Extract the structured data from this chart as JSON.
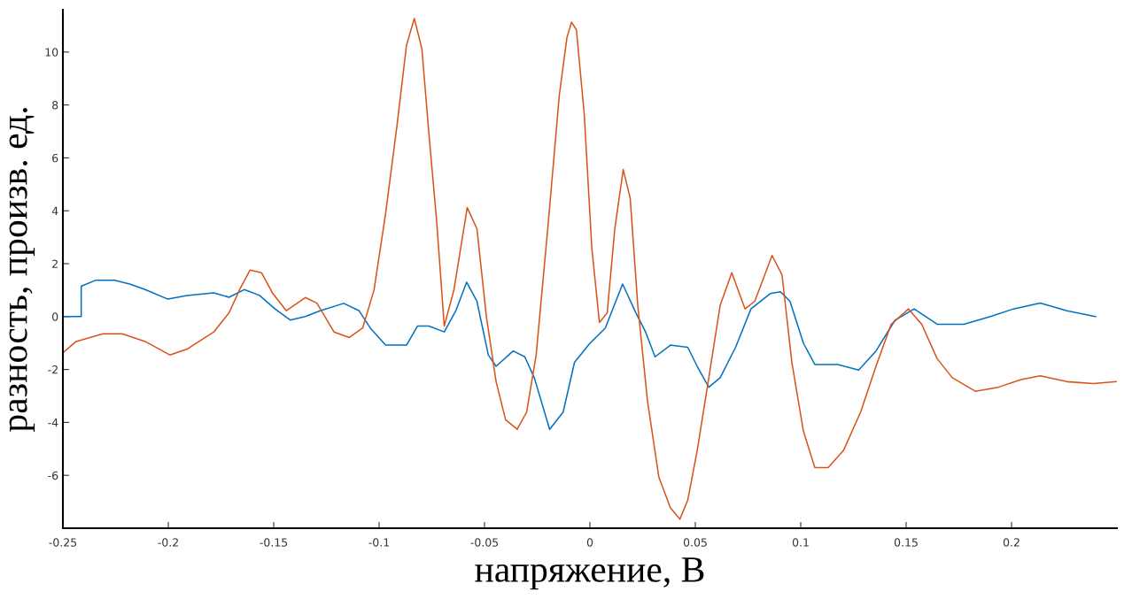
{
  "chart_data": {
    "type": "line",
    "xlabel": "напряжение, В",
    "ylabel": "разность, произв. ед.",
    "xlim": [
      -0.25,
      0.25
    ],
    "ylim": [
      -8,
      11.6
    ],
    "xticks": [
      -0.25,
      -0.2,
      -0.15,
      -0.1,
      -0.05,
      0,
      0.05,
      0.1,
      0.15,
      0.2
    ],
    "yticks": [
      -6,
      -4,
      -2,
      0,
      2,
      4,
      6,
      8,
      10
    ],
    "grid": false,
    "series": [
      {
        "color": "#0072bd",
        "x": [
          -0.25,
          -0.2413,
          -0.2413,
          -0.2346,
          -0.2255,
          -0.2183,
          -0.211,
          -0.2002,
          -0.1911,
          -0.1784,
          -0.1712,
          -0.164,
          -0.1567,
          -0.1495,
          -0.1422,
          -0.135,
          -0.1277,
          -0.1168,
          -0.1096,
          -0.1042,
          -0.0969,
          -0.087,
          -0.0818,
          -0.0764,
          -0.0691,
          -0.0636,
          -0.0585,
          -0.0536,
          -0.0482,
          -0.0445,
          -0.0364,
          -0.0309,
          -0.0264,
          -0.0191,
          -0.0127,
          -0.0073,
          0,
          0.0073,
          0.0155,
          0.0218,
          0.0264,
          0.0309,
          0.0382,
          0.0464,
          0.0509,
          0.0564,
          0.0618,
          0.0691,
          0.0764,
          0.0855,
          0.0904,
          0.0949,
          0.1013,
          0.1067,
          0.1176,
          0.1275,
          0.1357,
          0.1447,
          0.1538,
          0.1647,
          0.1774,
          0.19,
          0.2009,
          0.2136,
          0.2263,
          0.2399
        ],
        "values": [
          0,
          0,
          1.15,
          1.37,
          1.37,
          1.23,
          1.02,
          0.66,
          0.8,
          0.9,
          0.73,
          1.02,
          0.8,
          0.3,
          -0.13,
          0,
          0.23,
          0.5,
          0.23,
          -0.43,
          -1.08,
          -1.08,
          -0.36,
          -0.36,
          -0.58,
          0.22,
          1.3,
          0.58,
          -1.45,
          -1.88,
          -1.3,
          -1.52,
          -2.31,
          -4.26,
          -3.61,
          -1.73,
          -1.01,
          -0.43,
          1.23,
          0.14,
          -0.58,
          -1.52,
          -1.08,
          -1.16,
          -1.88,
          -2.67,
          -2.31,
          -1.16,
          0.29,
          0.87,
          0.94,
          0.58,
          -1.01,
          -1.81,
          -1.81,
          -2.02,
          -1.3,
          -0.14,
          0.29,
          -0.29,
          -0.29,
          0,
          0.29,
          0.51,
          0.22,
          0
        ]
      },
      {
        "color": "#d95319",
        "x": [
          -0.25,
          -0.2437,
          -0.231,
          -0.2219,
          -0.211,
          -0.1993,
          -0.1911,
          -0.1784,
          -0.1712,
          -0.1658,
          -0.1612,
          -0.1558,
          -0.1504,
          -0.144,
          -0.135,
          -0.1295,
          -0.1214,
          -0.1141,
          -0.1078,
          -0.1024,
          -0.0969,
          -0.0915,
          -0.087,
          -0.0833,
          -0.0797,
          -0.0764,
          -0.0727,
          -0.0691,
          -0.0645,
          -0.0582,
          -0.0536,
          -0.0491,
          -0.0445,
          -0.04,
          -0.0345,
          -0.03,
          -0.0255,
          -0.02,
          -0.0145,
          -0.0109,
          -0.0087,
          -0.0064,
          -0.0027,
          0.0009,
          0.0045,
          0.0082,
          0.0118,
          0.0158,
          0.0191,
          0.0227,
          0.0273,
          0.0327,
          0.0382,
          0.0427,
          0.0464,
          0.0509,
          0.0564,
          0.0618,
          0.0673,
          0.0736,
          0.0782,
          0.0864,
          0.0911,
          0.0958,
          0.1013,
          0.1067,
          0.113,
          0.1203,
          0.1284,
          0.1357,
          0.1429,
          0.1511,
          0.1574,
          0.1647,
          0.1719,
          0.1828,
          0.1937,
          0.2045,
          0.2136,
          0.2263,
          0.2389,
          0.2498
        ],
        "values": [
          -1.37,
          -0.94,
          -0.65,
          -0.65,
          -0.94,
          -1.45,
          -1.23,
          -0.58,
          0.14,
          1.08,
          1.76,
          1.66,
          0.87,
          0.22,
          0.72,
          0.51,
          -0.58,
          -0.79,
          -0.43,
          1.01,
          3.9,
          7.23,
          10.26,
          11.27,
          10.12,
          6.94,
          3.61,
          -0.36,
          1.01,
          4.12,
          3.32,
          0,
          -2.46,
          -3.9,
          -4.26,
          -3.61,
          -1.45,
          3.32,
          8.38,
          10.55,
          11.13,
          10.84,
          7.66,
          2.6,
          -0.22,
          0.14,
          3.32,
          5.56,
          4.48,
          0.43,
          -3.18,
          -6.07,
          -7.23,
          -7.66,
          -6.94,
          -5.06,
          -2.31,
          0.43,
          1.66,
          0.29,
          0.58,
          2.31,
          1.59,
          -1.73,
          -4.34,
          -5.71,
          -5.71,
          -5.06,
          -3.61,
          -1.88,
          -0.29,
          0.29,
          -0.29,
          -1.59,
          -2.31,
          -2.82,
          -2.67,
          -2.38,
          -2.24,
          -2.46,
          -2.53,
          -2.46
        ]
      }
    ]
  }
}
